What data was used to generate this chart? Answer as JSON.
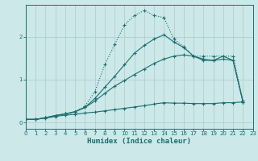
{
  "xlabel": "Humidex (Indice chaleur)",
  "background_color": "#cce8e8",
  "line_color": "#1a6e6e",
  "grid_color": "#aacccc",
  "xlim": [
    0,
    23
  ],
  "ylim": [
    -0.15,
    2.75
  ],
  "yticks": [
    0,
    1,
    2
  ],
  "xticks": [
    0,
    1,
    2,
    3,
    4,
    5,
    6,
    7,
    8,
    9,
    10,
    11,
    12,
    13,
    14,
    15,
    16,
    17,
    18,
    19,
    20,
    21,
    22,
    23
  ],
  "curve_peak_x": [
    0,
    1,
    2,
    3,
    4,
    5,
    6,
    7,
    8,
    9,
    10,
    11,
    12,
    13,
    14,
    15,
    16,
    17,
    18,
    19,
    20,
    21,
    22
  ],
  "curve_peak_y": [
    0.07,
    0.07,
    0.11,
    0.16,
    0.2,
    0.25,
    0.38,
    0.72,
    1.35,
    1.82,
    2.28,
    2.5,
    2.62,
    2.5,
    2.45,
    1.95,
    1.77,
    1.55,
    1.55,
    1.55,
    1.55,
    1.55,
    0.5
  ],
  "curve_upper_x": [
    0,
    1,
    2,
    3,
    4,
    5,
    6,
    7,
    8,
    9,
    10,
    11,
    12,
    13,
    14,
    15,
    16,
    17,
    18,
    19,
    20,
    21,
    22
  ],
  "curve_upper_y": [
    0.07,
    0.07,
    0.11,
    0.16,
    0.2,
    0.25,
    0.35,
    0.56,
    0.82,
    1.08,
    1.35,
    1.62,
    1.8,
    1.95,
    2.05,
    1.88,
    1.75,
    1.55,
    1.45,
    1.45,
    1.55,
    1.45,
    0.48
  ],
  "curve_mid_x": [
    0,
    1,
    2,
    3,
    4,
    5,
    6,
    7,
    8,
    9,
    10,
    11,
    12,
    13,
    14,
    15,
    16,
    17,
    18,
    19,
    20,
    21,
    22
  ],
  "curve_mid_y": [
    0.07,
    0.07,
    0.11,
    0.16,
    0.2,
    0.25,
    0.35,
    0.5,
    0.68,
    0.85,
    0.98,
    1.12,
    1.25,
    1.38,
    1.48,
    1.55,
    1.58,
    1.55,
    1.48,
    1.45,
    1.48,
    1.45,
    0.48
  ],
  "curve_flat_x": [
    0,
    1,
    2,
    3,
    4,
    5,
    6,
    7,
    8,
    9,
    10,
    11,
    12,
    13,
    14,
    15,
    16,
    17,
    18,
    19,
    20,
    21,
    22
  ],
  "curve_flat_y": [
    0.07,
    0.07,
    0.1,
    0.14,
    0.17,
    0.19,
    0.22,
    0.24,
    0.27,
    0.3,
    0.33,
    0.36,
    0.39,
    0.43,
    0.46,
    0.45,
    0.45,
    0.44,
    0.44,
    0.44,
    0.46,
    0.46,
    0.48
  ]
}
